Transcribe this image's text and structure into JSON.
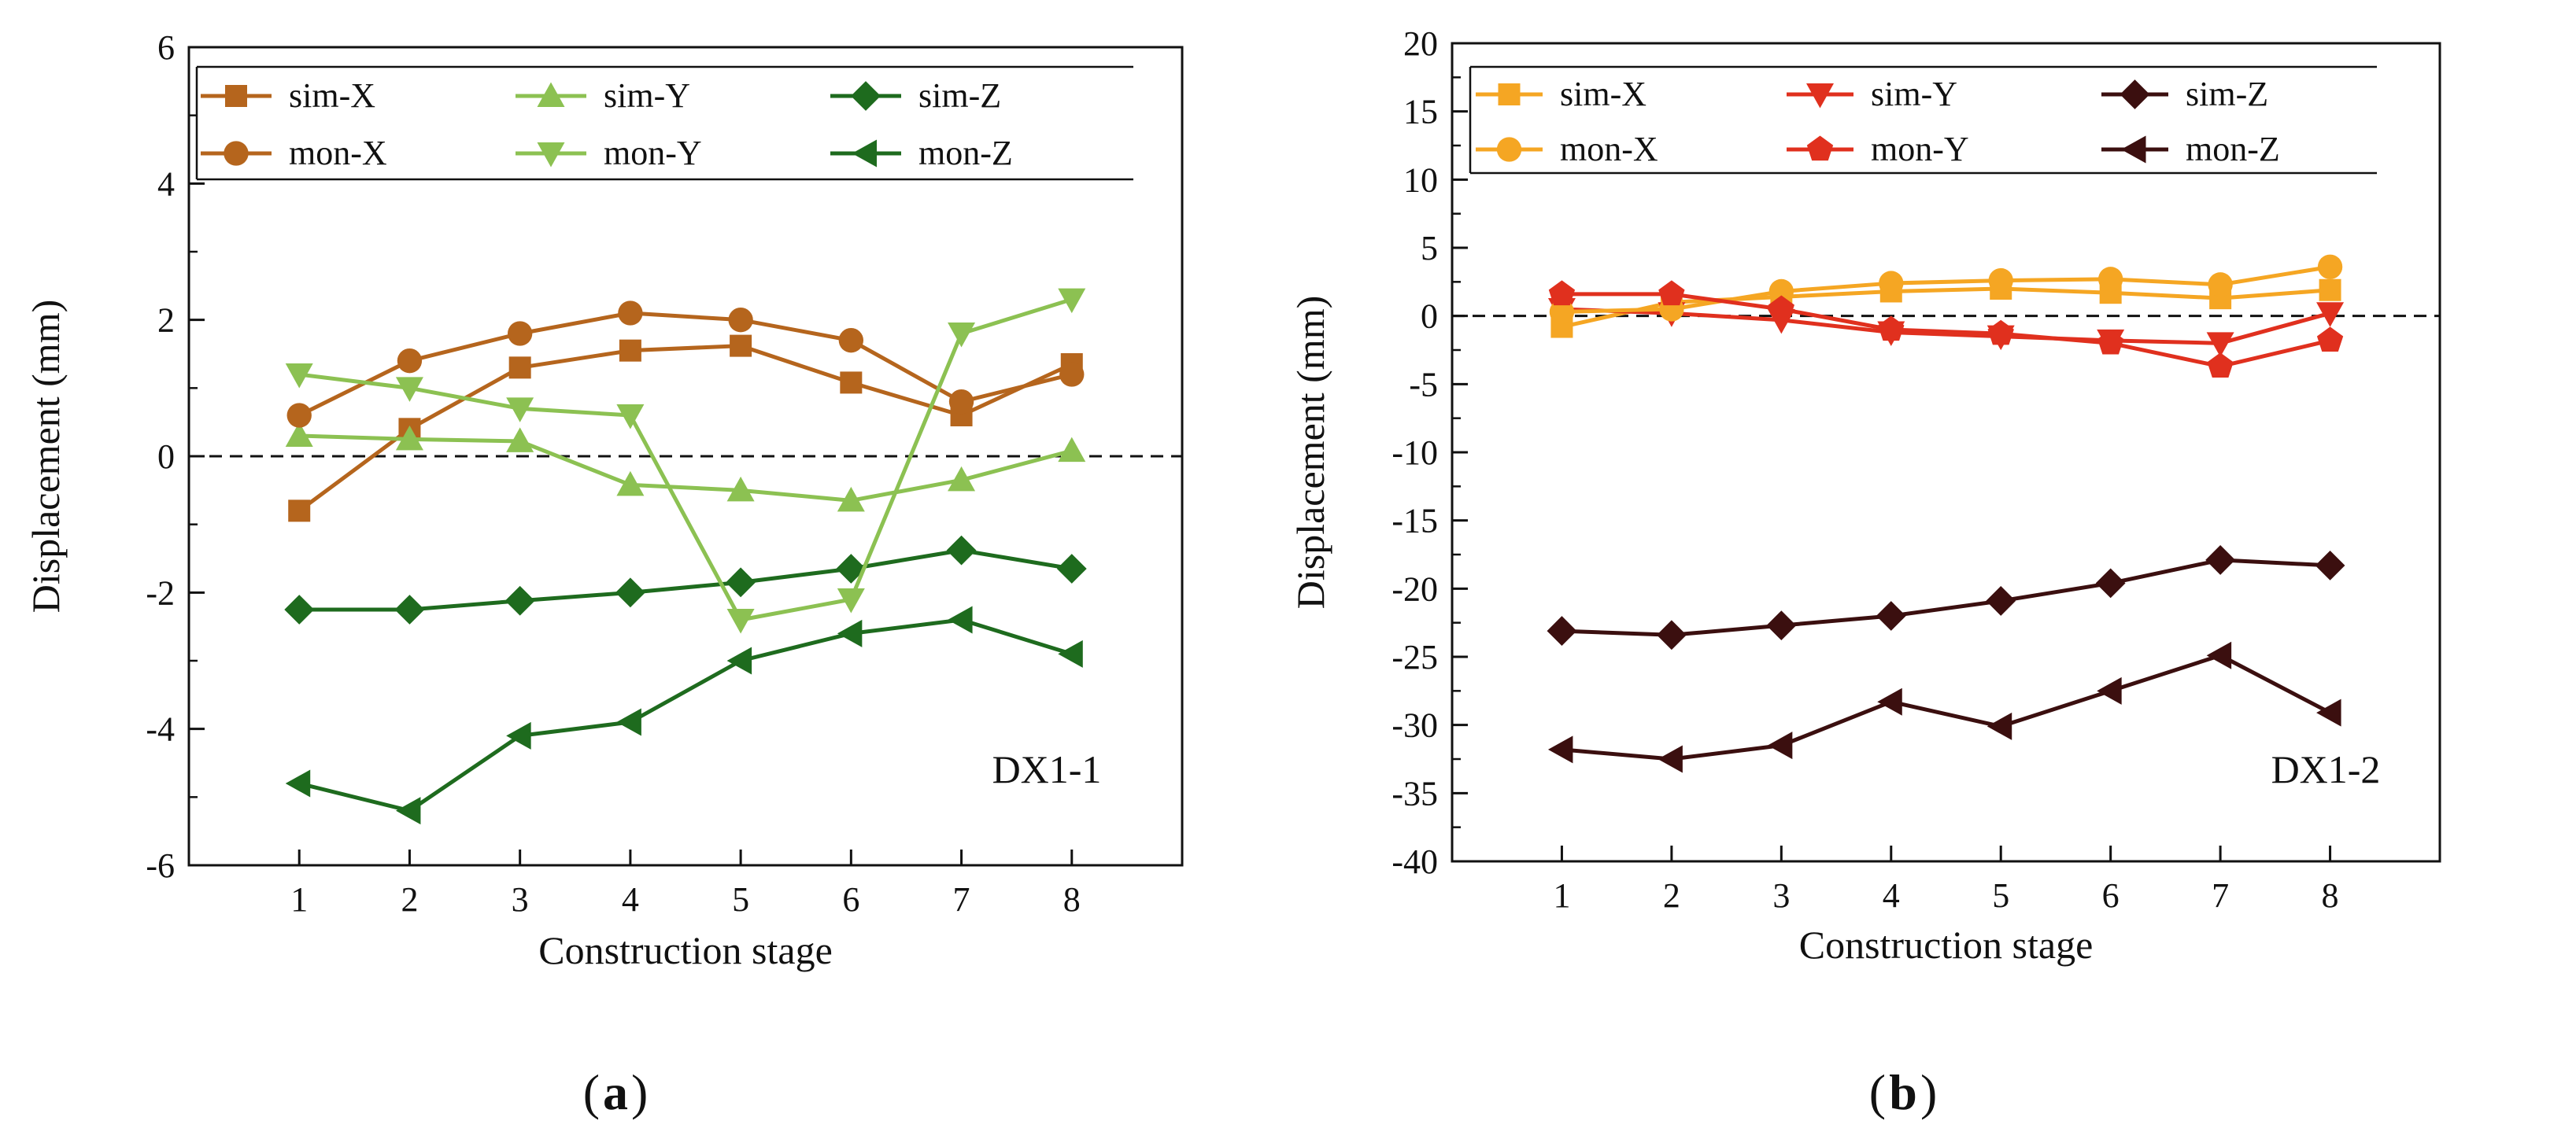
{
  "chart_data": [
    {
      "type": "line",
      "panel_label": "a",
      "annotation": "DX1-1",
      "xlabel": "Construction stage",
      "ylabel": "Displacement (mm)",
      "x": [
        1,
        2,
        3,
        4,
        5,
        6,
        7,
        8
      ],
      "xlim": [
        0,
        9
      ],
      "ylim": [
        -6,
        6
      ],
      "yticks": [
        -6,
        -4,
        -2,
        0,
        2,
        4,
        6
      ],
      "xticks": [
        1,
        2,
        3,
        4,
        5,
        6,
        7,
        8
      ],
      "zero_line": true,
      "legend_position": "top",
      "series": [
        {
          "name": "sim-X",
          "color": "#b5651d",
          "marker": "square",
          "values": [
            -0.8,
            0.4,
            1.3,
            1.55,
            1.62,
            1.08,
            0.6,
            1.35
          ]
        },
        {
          "name": "sim-Y",
          "color": "#8cc152",
          "marker": "triangle-up",
          "values": [
            0.3,
            0.25,
            0.22,
            -0.42,
            -0.5,
            -0.65,
            -0.35,
            0.08
          ]
        },
        {
          "name": "sim-Z",
          "color": "#1e6b1e",
          "marker": "diamond",
          "values": [
            -2.25,
            -2.25,
            -2.12,
            -2.0,
            -1.85,
            -1.65,
            -1.38,
            -1.65
          ]
        },
        {
          "name": "mon-X",
          "color": "#b5651d",
          "marker": "circle",
          "values": [
            0.6,
            1.4,
            1.8,
            2.1,
            2.0,
            1.7,
            0.8,
            1.2
          ]
        },
        {
          "name": "mon-Y",
          "color": "#8cc152",
          "marker": "triangle-down",
          "values": [
            1.2,
            1.0,
            0.7,
            0.6,
            -2.4,
            -2.1,
            1.8,
            2.3
          ]
        },
        {
          "name": "mon-Z",
          "color": "#1e6b1e",
          "marker": "triangle-left",
          "values": [
            -4.8,
            -5.2,
            -4.1,
            -3.9,
            -3.0,
            -2.6,
            -2.4,
            -2.9
          ]
        }
      ]
    },
    {
      "type": "line",
      "panel_label": "b",
      "annotation": "DX1-2",
      "xlabel": "Construction stage",
      "ylabel": "Displacement (mm)",
      "x": [
        1,
        2,
        3,
        4,
        5,
        6,
        7,
        8
      ],
      "xlim": [
        0,
        9
      ],
      "ylim": [
        -40,
        20
      ],
      "yticks": [
        -40,
        -35,
        -30,
        -25,
        -20,
        -15,
        -10,
        -5,
        0,
        5,
        10,
        15,
        20
      ],
      "xticks": [
        1,
        2,
        3,
        4,
        5,
        6,
        7,
        8
      ],
      "zero_line": true,
      "legend_position": "top",
      "series": [
        {
          "name": "sim-X",
          "color": "#f5a623",
          "marker": "square",
          "values": [
            -0.8,
            1.0,
            1.4,
            1.8,
            2.0,
            1.7,
            1.3,
            1.9
          ]
        },
        {
          "name": "sim-Y",
          "color": "#e0301e",
          "marker": "triangle-down",
          "values": [
            0.5,
            0.2,
            -0.3,
            -1.2,
            -1.5,
            -1.8,
            -2.0,
            0.2
          ]
        },
        {
          "name": "sim-Z",
          "color": "#3b0f0f",
          "marker": "diamond",
          "values": [
            -23.1,
            -23.4,
            -22.7,
            -22.0,
            -20.9,
            -19.6,
            -17.9,
            -18.3
          ]
        },
        {
          "name": "mon-X",
          "color": "#f5a623",
          "marker": "circle",
          "values": [
            0.3,
            0.5,
            1.8,
            2.4,
            2.6,
            2.7,
            2.3,
            3.6
          ]
        },
        {
          "name": "mon-Y",
          "color": "#e0301e",
          "marker": "pentagon",
          "values": [
            1.6,
            1.6,
            0.5,
            -1.0,
            -1.3,
            -2.0,
            -3.7,
            -1.8
          ]
        },
        {
          "name": "mon-Z",
          "color": "#3b0f0f",
          "marker": "triangle-left",
          "values": [
            -31.8,
            -32.5,
            -31.5,
            -28.3,
            -30.1,
            -27.5,
            -24.9,
            -29.1
          ]
        }
      ]
    }
  ]
}
